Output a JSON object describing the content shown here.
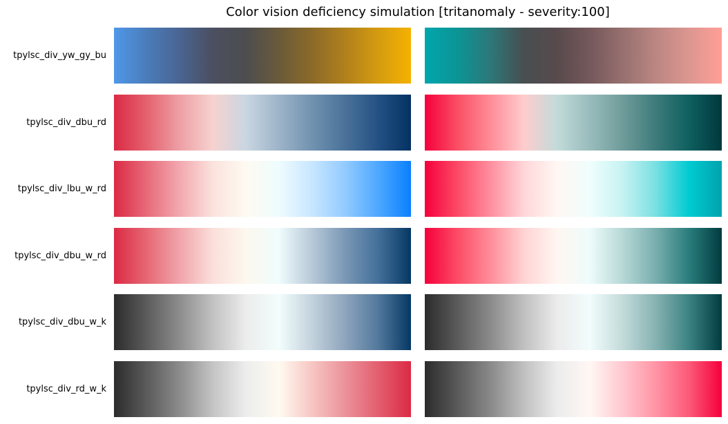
{
  "chart_data": {
    "type": "heatmap",
    "title": "Color vision deficiency simulation [tritanomaly - severity:100]",
    "colormaps": [
      {
        "name": "tpylsc_div_yw_gy_bu",
        "original": [
          "#4f98e8",
          "#4a7cba",
          "#4a6491",
          "#4b4f60",
          "#4d4d4f",
          "#6a5a3a",
          "#8b6a28",
          "#b0801c",
          "#d49b10",
          "#f6b200"
        ],
        "simulated": [
          "#00a6ad",
          "#0c9495",
          "#2d7778",
          "#484e50",
          "#584a4d",
          "#75585b",
          "#97706f",
          "#bb8682",
          "#dc9690",
          "#ff9f97"
        ]
      },
      {
        "name": "tpylsc_div_dbu_rd",
        "original": [
          "#db2a44",
          "#e4626f",
          "#eea0a6",
          "#f6d2cf",
          "#c9d6e2",
          "#9db4c9",
          "#7192b0",
          "#4a7299",
          "#245184",
          "#043261"
        ],
        "simulated": [
          "#f5003c",
          "#fa4f65",
          "#ff8d98",
          "#ffcccd",
          "#c2dbda",
          "#99bcbc",
          "#6e9c9a",
          "#3e7b7b",
          "#0f6060",
          "#00383d"
        ]
      },
      {
        "name": "tpylsc_div_lbu_w_rd",
        "original": [
          "#db2a44",
          "#e76b7a",
          "#f2a9b0",
          "#fbe2dd",
          "#fefaf2",
          "#eefcfe",
          "#c8e6ff",
          "#93cbff",
          "#4ea8ff",
          "#0a80ff"
        ],
        "simulated": [
          "#f5003c",
          "#fc4a66",
          "#ff8fa0",
          "#ffd6d8",
          "#fff7f3",
          "#effefd",
          "#c6f2f2",
          "#79e0e2",
          "#00cbd2",
          "#00a2ad"
        ]
      },
      {
        "name": "tpylsc_div_dbu_w_rd",
        "original": [
          "#db2a44",
          "#e66874",
          "#f0a5ab",
          "#fbdfdb",
          "#fcf8ee",
          "#f0fcfd",
          "#b7c9d8",
          "#7a98b5",
          "#44709a",
          "#053864"
        ],
        "simulated": [
          "#f5003c",
          "#fc4c66",
          "#ff8e9a",
          "#ffd3d3",
          "#fff6f1",
          "#edfcfb",
          "#b6d8d6",
          "#79aeae",
          "#2a7d7d",
          "#003b3f"
        ]
      },
      {
        "name": "tpylsc_div_dbu_w_k",
        "original": [
          "#2c2c2c",
          "#5c5c5c",
          "#8d8d8d",
          "#c2c2c2",
          "#ececec",
          "#f2fdfc",
          "#c3d2dc",
          "#8ea5bd",
          "#53799d",
          "#053864"
        ],
        "simulated": [
          "#2c2c2c",
          "#5b5b5b",
          "#8b8b8b",
          "#c0c0c0",
          "#ebebeb",
          "#f2fcfc",
          "#c2dbda",
          "#86b2b2",
          "#3d8383",
          "#003b3f"
        ]
      },
      {
        "name": "tpylsc_div_rd_w_k",
        "original": [
          "#2c2c2c",
          "#5b5b5b",
          "#8c8c8c",
          "#c4c4c4",
          "#ededed",
          "#fffaf0",
          "#f7c6c3",
          "#eb929a",
          "#e35f70",
          "#db2a44"
        ],
        "simulated": [
          "#2c2c2c",
          "#5a5a5a",
          "#8a8a8a",
          "#c0c0c0",
          "#ececec",
          "#fff7f4",
          "#ffc8cf",
          "#ff94a6",
          "#fc5a78",
          "#f5003c"
        ]
      }
    ]
  }
}
